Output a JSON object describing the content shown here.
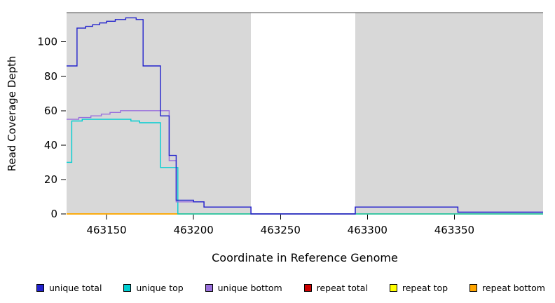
{
  "chart_data": {
    "type": "line",
    "subtype": "step",
    "title": "",
    "xlabel": "Coordinate in Reference Genome",
    "ylabel": "Read Coverage Depth",
    "xlim": [
      463127,
      463401
    ],
    "ylim": [
      0,
      117
    ],
    "x_ticks": [
      463150,
      463200,
      463250,
      463300,
      463350
    ],
    "y_ticks": [
      0,
      20,
      40,
      60,
      80,
      100
    ],
    "grid": false,
    "legend_position": "bottom",
    "region_color": "#d8d8d8",
    "box_color": "#4d4d4d",
    "shaded_regions": [
      {
        "x0": 463127,
        "x1": 463233,
        "color": "#d8d8d8"
      },
      {
        "x0": 463293,
        "x1": 463401,
        "color": "#d8d8d8"
      }
    ],
    "draw_order": [
      "repeat total",
      "repeat top",
      "repeat bottom",
      "unique top",
      "unique bottom",
      "unique total"
    ],
    "series": [
      {
        "name": "unique total",
        "color": "#2222cc",
        "points": [
          [
            463127,
            86
          ],
          [
            463133,
            108
          ],
          [
            463138,
            109
          ],
          [
            463142,
            110
          ],
          [
            463146,
            111
          ],
          [
            463150,
            112
          ],
          [
            463155,
            113
          ],
          [
            463161,
            114
          ],
          [
            463167,
            113
          ],
          [
            463171,
            86
          ],
          [
            463181,
            57
          ],
          [
            463186,
            34
          ],
          [
            463190,
            8
          ],
          [
            463200,
            7
          ],
          [
            463206,
            4
          ],
          [
            463233,
            0
          ],
          [
            463293,
            4
          ],
          [
            463352,
            1
          ],
          [
            463401,
            1
          ]
        ]
      },
      {
        "name": "unique top",
        "color": "#00ced1",
        "points": [
          [
            463127,
            30
          ],
          [
            463130,
            54
          ],
          [
            463136,
            55
          ],
          [
            463152,
            55
          ],
          [
            463164,
            54
          ],
          [
            463169,
            53
          ],
          [
            463181,
            27
          ],
          [
            463191,
            0
          ],
          [
            463401,
            0
          ]
        ]
      },
      {
        "name": "unique bottom",
        "color": "#9a70dc",
        "points": [
          [
            463127,
            55
          ],
          [
            463134,
            56
          ],
          [
            463141,
            57
          ],
          [
            463147,
            58
          ],
          [
            463152,
            59
          ],
          [
            463158,
            60
          ],
          [
            463181,
            60
          ],
          [
            463186,
            31
          ],
          [
            463190,
            7
          ],
          [
            463206,
            4
          ],
          [
            463233,
            0
          ],
          [
            463293,
            4
          ],
          [
            463352,
            1
          ],
          [
            463401,
            1
          ]
        ]
      },
      {
        "name": "repeat total",
        "color": "#cc0000",
        "points": [
          [
            463127,
            0
          ],
          [
            463401,
            0
          ]
        ]
      },
      {
        "name": "repeat top",
        "color": "#ffff00",
        "points": [
          [
            463127,
            0
          ],
          [
            463401,
            0
          ]
        ]
      },
      {
        "name": "repeat bottom",
        "color": "#ffa500",
        "points": [
          [
            463127,
            0
          ],
          [
            463401,
            0
          ]
        ]
      }
    ]
  }
}
